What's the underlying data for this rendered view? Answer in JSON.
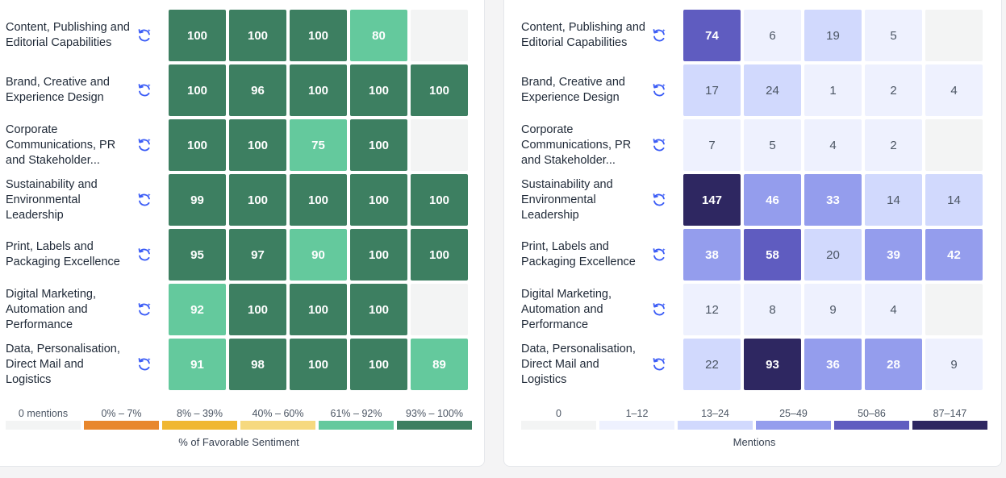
{
  "colors": {
    "sent_0": "#f3f4f4",
    "sent_1": "#e8872d",
    "sent_2": "#f0b731",
    "sent_3": "#f6d97f",
    "sent_4": "#64c99d",
    "sent_5": "#3d7f61",
    "men_0": "#f3f4f4",
    "men_1": "#eef1fe",
    "men_2": "#d1d9fd",
    "men_3": "#949ded",
    "men_4": "#5f5cc0",
    "men_5": "#2e2761",
    "icon": "#3b5cf6"
  },
  "rows": [
    {
      "label": [
        "Content, Publishing and",
        "Editorial Capabilities"
      ]
    },
    {
      "label": [
        "Brand, Creative and",
        "Experience Design"
      ]
    },
    {
      "label": [
        "Corporate",
        "Communications, PR",
        "and Stakeholder..."
      ]
    },
    {
      "label": [
        "Sustainability and",
        "Environmental",
        "Leadership"
      ]
    },
    {
      "label": [
        "Print, Labels and",
        "Packaging Excellence"
      ]
    },
    {
      "label": [
        "Digital Marketing,",
        "Automation and",
        "Performance"
      ]
    },
    {
      "label": [
        "Data, Personalisation,",
        "Direct Mail and",
        "Logistics"
      ]
    }
  ],
  "chart_data": [
    {
      "type": "heatmap",
      "title": "% of Favorable Sentiment",
      "rows": [
        "Content, Publishing and Editorial Capabilities",
        "Brand, Creative and Experience Design",
        "Corporate Communications, PR and Stakeholder...",
        "Sustainability and Environmental Leadership",
        "Print, Labels and Packaging Excellence",
        "Digital Marketing, Automation and Performance",
        "Data, Personalisation, Direct Mail and Logistics"
      ],
      "values": [
        [
          100,
          100,
          100,
          80,
          null
        ],
        [
          100,
          96,
          100,
          100,
          100
        ],
        [
          100,
          100,
          75,
          100,
          null
        ],
        [
          99,
          100,
          100,
          100,
          100
        ],
        [
          95,
          97,
          90,
          100,
          100
        ],
        [
          92,
          100,
          100,
          100,
          null
        ],
        [
          91,
          98,
          100,
          100,
          89
        ]
      ],
      "legend": [
        {
          "label": "0 mentions",
          "color": "#f3f4f4"
        },
        {
          "label": "0% – 7%",
          "color": "#e8872d"
        },
        {
          "label": "8% – 39%",
          "color": "#f0b731"
        },
        {
          "label": "40% – 60%",
          "color": "#f6d97f"
        },
        {
          "label": "61% – 92%",
          "color": "#64c99d"
        },
        {
          "label": "93% – 100%",
          "color": "#3d7f61"
        }
      ],
      "legend_title": "% of Favorable Sentiment"
    },
    {
      "type": "heatmap",
      "title": "Mentions",
      "rows": [
        "Content, Publishing and Editorial Capabilities",
        "Brand, Creative and Experience Design",
        "Corporate Communications, PR and Stakeholder...",
        "Sustainability and Environmental Leadership",
        "Print, Labels and Packaging Excellence",
        "Digital Marketing, Automation and Performance",
        "Data, Personalisation, Direct Mail and Logistics"
      ],
      "values": [
        [
          74,
          6,
          19,
          5,
          null
        ],
        [
          17,
          24,
          1,
          2,
          4
        ],
        [
          7,
          5,
          4,
          2,
          null
        ],
        [
          147,
          46,
          33,
          14,
          14
        ],
        [
          38,
          58,
          20,
          39,
          42
        ],
        [
          12,
          8,
          9,
          4,
          null
        ],
        [
          22,
          93,
          36,
          28,
          9
        ]
      ],
      "legend": [
        {
          "label": "0",
          "color": "#f3f4f4"
        },
        {
          "label": "1–12",
          "color": "#eef1fe"
        },
        {
          "label": "13–24",
          "color": "#d1d9fd"
        },
        {
          "label": "25–49",
          "color": "#949ded"
        },
        {
          "label": "50–86",
          "color": "#5f5cc0"
        },
        {
          "label": "87–147",
          "color": "#2e2761"
        }
      ],
      "legend_title": "Mentions"
    }
  ]
}
